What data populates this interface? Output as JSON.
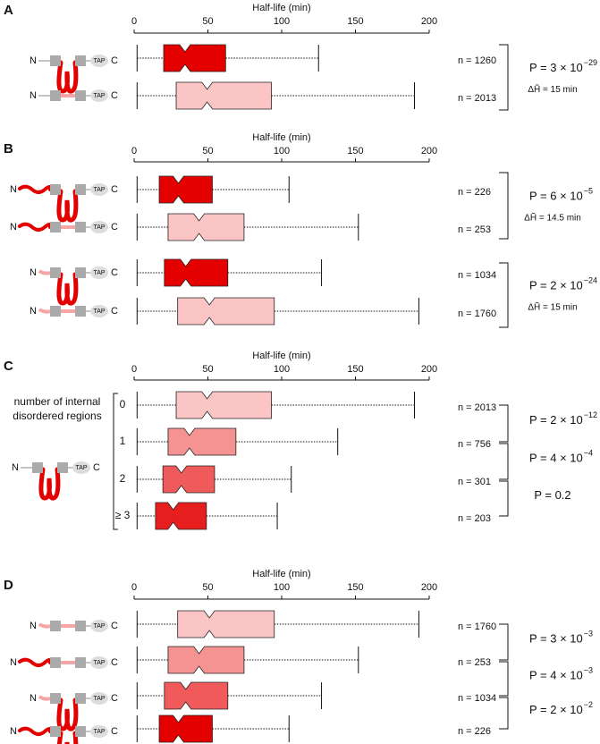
{
  "construct_labels": {
    "n": "N",
    "tag": "TAP",
    "c": "C"
  },
  "chart_data": [
    {
      "type": "box",
      "panel": "A",
      "xlabel": "Half-life (min)",
      "xlim": [
        0,
        200
      ],
      "xticks": [
        0,
        50,
        100,
        150,
        200
      ],
      "series": [
        {
          "name": "n = 1260",
          "color": "#e50000",
          "values": [
            2,
            20,
            34.5,
            62,
            125
          ]
        },
        {
          "name": "n = 2013",
          "color": "#fbc5c5",
          "values": [
            2,
            28.5,
            49.5,
            93,
            190
          ]
        }
      ],
      "comparisons": [
        {
          "label": "P = 3 × 10",
          "exponent": "−29",
          "delta": "ΔH̃ = 15 min"
        }
      ]
    },
    {
      "type": "box",
      "panel": "B",
      "xlabel": "Half-life (min)",
      "xlim": [
        0,
        200
      ],
      "xticks": [
        0,
        50,
        100,
        150,
        200
      ],
      "series": [
        {
          "name": "n = 226",
          "color": "#e50000",
          "values": [
            2,
            17,
            30,
            53,
            105
          ]
        },
        {
          "name": "n = 253",
          "color": "#fbc5c5",
          "values": [
            2,
            23,
            44,
            74.5,
            152
          ]
        },
        {
          "name": "n = 1034",
          "color": "#e50000",
          "values": [
            2,
            20.5,
            35,
            63.5,
            127
          ]
        },
        {
          "name": "n = 1760",
          "color": "#fbc5c5",
          "values": [
            2,
            29.5,
            51,
            95,
            193
          ]
        }
      ],
      "comparisons": [
        {
          "label": "P = 6 × 10",
          "exponent": "−5",
          "delta": "ΔH̃ = 14.5 min"
        },
        {
          "label": "P = 2 × 10",
          "exponent": "−24",
          "delta": "ΔH̃ = 15 min"
        }
      ]
    },
    {
      "type": "box",
      "panel": "C",
      "xlabel": "Half-life (min)",
      "xlim": [
        0,
        200
      ],
      "xticks": [
        0,
        50,
        100,
        150,
        200
      ],
      "group_label": [
        "number of internal",
        "disordered regions"
      ],
      "categories": [
        "0",
        "1",
        "2",
        "≥ 3"
      ],
      "series": [
        {
          "name": "n = 2013",
          "color": "#fbc5c5",
          "values": [
            2,
            28.5,
            49.5,
            93,
            190
          ]
        },
        {
          "name": "n = 756",
          "color": "#f59393",
          "values": [
            2,
            23,
            37.5,
            69,
            138
          ]
        },
        {
          "name": "n = 301",
          "color": "#f05a5a",
          "values": [
            2,
            19.5,
            32,
            54.5,
            106.5
          ]
        },
        {
          "name": "n = 203",
          "color": "#e61e1e",
          "values": [
            2,
            14.5,
            26.5,
            49,
            97
          ]
        }
      ],
      "comparisons": [
        {
          "label": "P = 2 × 10",
          "exponent": "−12"
        },
        {
          "label": "P = 4 × 10",
          "exponent": "−4"
        },
        {
          "label": "P = 0.2"
        }
      ]
    },
    {
      "type": "box",
      "panel": "D",
      "xlabel": "Half-life (min)",
      "xlim": [
        0,
        200
      ],
      "xticks": [
        0,
        50,
        100,
        150,
        200
      ],
      "series": [
        {
          "name": "n = 1760",
          "color": "#fbc5c5",
          "values": [
            2,
            29.5,
            51,
            95,
            193
          ]
        },
        {
          "name": "n = 253",
          "color": "#f59393",
          "values": [
            2,
            23,
            44,
            74.5,
            152
          ]
        },
        {
          "name": "n = 1034",
          "color": "#f05a5a",
          "values": [
            2,
            20.5,
            35,
            63.5,
            127
          ]
        },
        {
          "name": "n = 226",
          "color": "#e50000",
          "values": [
            2,
            17,
            30,
            53,
            105
          ]
        }
      ],
      "comparisons": [
        {
          "label": "P = 3 × 10",
          "exponent": "−3"
        },
        {
          "label": "P = 4 × 10",
          "exponent": "−3"
        },
        {
          "label": "P = 2 × 10",
          "exponent": "−2"
        }
      ]
    }
  ]
}
